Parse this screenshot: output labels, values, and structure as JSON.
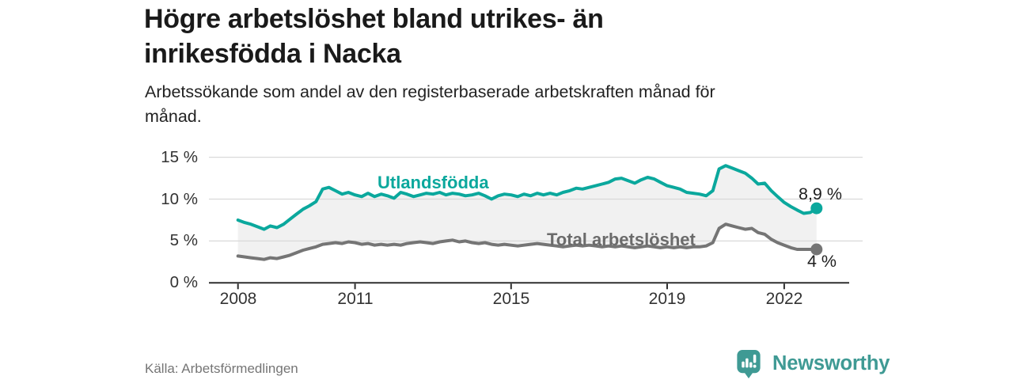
{
  "header": {
    "title": "Högre arbetslöshet bland utrikes- än\ninrikesfödda i Nacka",
    "subtitle": "Arbetssökande som andel av den registerbaserade arbetskraften månad för\nmånad."
  },
  "footer": {
    "source": "Källa: Arbetsförmedlingen",
    "brand": "Newsworthy"
  },
  "colors": {
    "series_utlandsfodda": "#0ba89d",
    "series_total": "#757575",
    "band": "#f1f1f1",
    "gridline": "#d9d9d9",
    "axis": "#2e2e2e",
    "logo_teal": "#3f9a94"
  },
  "chart_data": {
    "type": "line",
    "title": "Högre arbetslöshet bland utrikes- än inrikesfödda i Nacka",
    "subtitle": "Arbetssökande som andel av den registerbaserade arbetskraften månad för månad.",
    "grid": true,
    "legend_position": "inline-labels",
    "ylim": [
      0,
      15.5
    ],
    "xlim": [
      2008,
      2023
    ],
    "y_ticks": [
      15,
      10,
      5,
      0
    ],
    "y_tick_labels": [
      "15 %",
      "10 %",
      "5 %",
      "0 %"
    ],
    "x_tick_years": [
      2008,
      2011,
      2015,
      2019,
      2022
    ],
    "x_tick_labels": [
      "2008",
      "2011",
      "2015",
      "2019",
      "2022"
    ],
    "x": [
      2008,
      2008.17,
      2008.33,
      2008.5,
      2008.67,
      2008.83,
      2009,
      2009.17,
      2009.33,
      2009.5,
      2009.67,
      2009.83,
      2010,
      2010.17,
      2010.33,
      2010.5,
      2010.67,
      2010.83,
      2011,
      2011.17,
      2011.33,
      2011.5,
      2011.67,
      2011.83,
      2012,
      2012.17,
      2012.33,
      2012.5,
      2012.67,
      2012.83,
      2013,
      2013.17,
      2013.33,
      2013.5,
      2013.67,
      2013.83,
      2014,
      2014.17,
      2014.33,
      2014.5,
      2014.67,
      2014.83,
      2015,
      2015.17,
      2015.33,
      2015.5,
      2015.67,
      2015.83,
      2016,
      2016.17,
      2016.33,
      2016.5,
      2016.67,
      2016.83,
      2017,
      2017.17,
      2017.33,
      2017.5,
      2017.67,
      2017.83,
      2018,
      2018.17,
      2018.33,
      2018.5,
      2018.67,
      2018.83,
      2019,
      2019.17,
      2019.33,
      2019.5,
      2019.67,
      2019.83,
      2020,
      2020.17,
      2020.33,
      2020.5,
      2020.67,
      2020.83,
      2021,
      2021.17,
      2021.33,
      2021.5,
      2021.67,
      2021.83,
      2022,
      2022.17,
      2022.33,
      2022.5,
      2022.67,
      2022.83
    ],
    "series": [
      {
        "name": "Utlandsfödda",
        "color": "#0ba89d",
        "end_label": "8,9 %",
        "end_value": 8.9,
        "values": [
          7.5,
          7.2,
          7.0,
          6.7,
          6.4,
          6.8,
          6.6,
          7.0,
          7.6,
          8.2,
          8.8,
          9.2,
          9.7,
          11.2,
          11.4,
          11.0,
          10.6,
          10.8,
          10.5,
          10.3,
          10.7,
          10.3,
          10.6,
          10.4,
          10.1,
          10.8,
          10.6,
          10.3,
          10.5,
          10.7,
          10.6,
          10.8,
          10.5,
          10.7,
          10.6,
          10.4,
          10.5,
          10.7,
          10.4,
          10.0,
          10.4,
          10.6,
          10.5,
          10.3,
          10.6,
          10.4,
          10.7,
          10.5,
          10.7,
          10.5,
          10.8,
          11.0,
          11.3,
          11.2,
          11.4,
          11.6,
          11.8,
          12.0,
          12.4,
          12.5,
          12.2,
          11.9,
          12.3,
          12.6,
          12.4,
          12.0,
          11.6,
          11.4,
          11.2,
          10.8,
          10.7,
          10.6,
          10.4,
          11.0,
          13.6,
          14.0,
          13.7,
          13.4,
          13.1,
          12.5,
          11.8,
          11.9,
          11.0,
          10.3,
          9.6,
          9.1,
          8.7,
          8.3,
          8.4,
          8.9
        ]
      },
      {
        "name": "Total arbetslöshet",
        "color": "#757575",
        "end_label": "4 %",
        "end_value": 4.0,
        "values": [
          3.2,
          3.1,
          3.0,
          2.9,
          2.8,
          3.0,
          2.9,
          3.1,
          3.3,
          3.6,
          3.9,
          4.1,
          4.3,
          4.6,
          4.7,
          4.8,
          4.7,
          4.9,
          4.8,
          4.6,
          4.7,
          4.5,
          4.6,
          4.5,
          4.6,
          4.5,
          4.7,
          4.8,
          4.9,
          4.8,
          4.7,
          4.9,
          5.0,
          5.1,
          4.9,
          5.0,
          4.8,
          4.7,
          4.8,
          4.6,
          4.5,
          4.6,
          4.5,
          4.4,
          4.5,
          4.6,
          4.7,
          4.6,
          4.5,
          4.4,
          4.3,
          4.4,
          4.5,
          4.4,
          4.5,
          4.4,
          4.3,
          4.4,
          4.3,
          4.4,
          4.3,
          4.2,
          4.3,
          4.4,
          4.3,
          4.2,
          4.3,
          4.2,
          4.3,
          4.2,
          4.3,
          4.3,
          4.4,
          4.8,
          6.5,
          7.0,
          6.8,
          6.6,
          6.4,
          6.5,
          6.0,
          5.8,
          5.2,
          4.8,
          4.5,
          4.2,
          4.0,
          4.0,
          4.0,
          4.0
        ]
      }
    ]
  }
}
